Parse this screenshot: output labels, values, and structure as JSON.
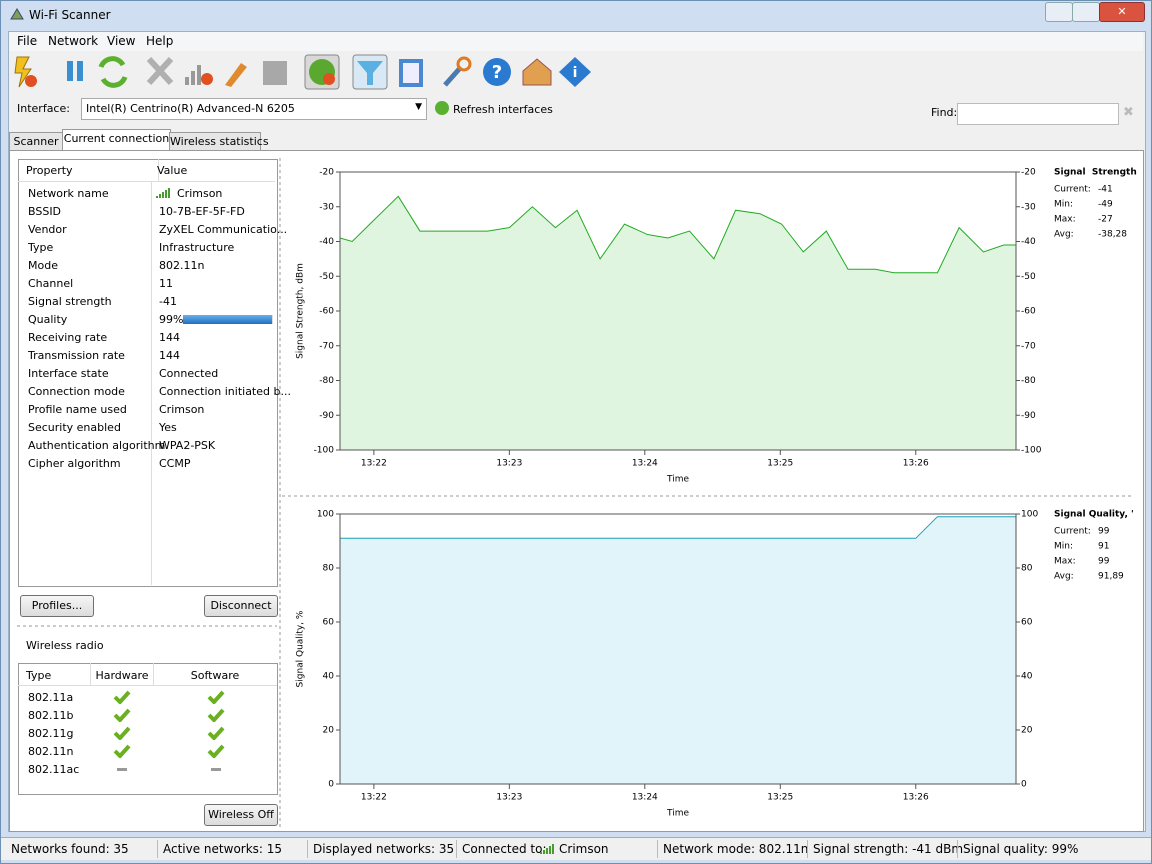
{
  "window": {
    "title": "Wi-Fi Scanner"
  },
  "menu": [
    "File",
    "Network",
    "View",
    "Help"
  ],
  "interface": {
    "label": "Interface:",
    "selected": "Intel(R) Centrino(R) Advanced-N 6205",
    "refresh": "Refresh interfaces",
    "find_label": "Find:"
  },
  "tabs": [
    "Scanner",
    "Current connection",
    "Wireless statistics"
  ],
  "properties": {
    "headers": [
      "Property",
      "Value"
    ],
    "rows": [
      [
        "Network name",
        "Crimson"
      ],
      [
        "BSSID",
        "10-7B-EF-5F-FD"
      ],
      [
        "Vendor",
        "ZyXEL Communicatio..."
      ],
      [
        "Type",
        "Infrastructure"
      ],
      [
        "Mode",
        "802.11n"
      ],
      [
        "Channel",
        "11"
      ],
      [
        "Signal strength",
        "-41"
      ],
      [
        "Quality",
        "99%"
      ],
      [
        "Receiving rate",
        "144"
      ],
      [
        "Transmission rate",
        "144"
      ],
      [
        "Interface state",
        "Connected"
      ],
      [
        "Connection mode",
        "Connection initiated b..."
      ],
      [
        "Profile name used",
        "Crimson"
      ],
      [
        "Security enabled",
        "Yes"
      ],
      [
        "Authentication algorithm",
        "WPA2-PSK"
      ],
      [
        "Cipher algorithm",
        "CCMP"
      ]
    ],
    "quality_percent": 99
  },
  "buttons": {
    "profiles": "Profiles...",
    "disconnect": "Disconnect",
    "wireless_off": "Wireless Off"
  },
  "wireless_radio": {
    "title": "Wireless radio",
    "headers": [
      "Type",
      "Hardware",
      "Software"
    ],
    "rows": [
      {
        "type": "802.11a",
        "hardware": true,
        "software": true
      },
      {
        "type": "802.11b",
        "hardware": true,
        "software": true
      },
      {
        "type": "802.11g",
        "hardware": true,
        "software": true
      },
      {
        "type": "802.11n",
        "hardware": true,
        "software": true
      },
      {
        "type": "802.11ac",
        "hardware": false,
        "software": false
      }
    ]
  },
  "chart_data": [
    {
      "type": "line",
      "y_label": "Signal Strength, dBm",
      "x_label": "Time",
      "color": "#22aa22",
      "fill": "#dff5df",
      "xlim": [
        21.75,
        26.74
      ],
      "xticks": [
        {
          "value": 22,
          "label": "13:22"
        },
        {
          "value": 23,
          "label": "13:23"
        },
        {
          "value": 24,
          "label": "13:24"
        },
        {
          "value": 25,
          "label": "13:25"
        },
        {
          "value": 26,
          "label": "13:26"
        }
      ],
      "ylim": [
        -100,
        -20
      ],
      "yticks": [
        -20,
        -30,
        -40,
        -50,
        -60,
        -70,
        -80,
        -90,
        -100
      ],
      "x": [
        21.75,
        21.84,
        21.97,
        22.18,
        22.34,
        22.84,
        23.0,
        23.17,
        23.34,
        23.5,
        23.67,
        23.85,
        24.02,
        24.17,
        24.33,
        24.51,
        24.67,
        24.85,
        25.01,
        25.17,
        25.34,
        25.5,
        25.7,
        25.84,
        26.16,
        26.32,
        26.5,
        26.65,
        26.74
      ],
      "values": [
        -39,
        -40,
        -35,
        -27,
        -37,
        -37,
        -36,
        -30,
        -36,
        -31,
        -45,
        -35,
        -38,
        -39,
        -37,
        -45,
        -31,
        -32,
        -35,
        -43,
        -37,
        -48,
        -48,
        -49,
        -49,
        -36,
        -43,
        -41,
        -41
      ],
      "legend": {
        "title": "Signal  Strength",
        "items": [
          [
            "Current:",
            "-41"
          ],
          [
            "Min:",
            "-49"
          ],
          [
            "Max:",
            "-27"
          ],
          [
            "Avg:",
            "-38,28"
          ]
        ]
      }
    },
    {
      "type": "line",
      "y_label": "Signal Quality, %",
      "x_label": "Time",
      "color": "#1aa0b8",
      "fill": "#e0f4fa",
      "xlim": [
        21.75,
        26.74
      ],
      "xticks": [
        {
          "value": 22,
          "label": "13:22"
        },
        {
          "value": 23,
          "label": "13:23"
        },
        {
          "value": 24,
          "label": "13:24"
        },
        {
          "value": 25,
          "label": "13:25"
        },
        {
          "value": 26,
          "label": "13:26"
        }
      ],
      "ylim": [
        0,
        100
      ],
      "yticks": [
        0,
        20,
        40,
        60,
        80,
        100
      ],
      "x": [
        21.75,
        26.0,
        26.16,
        26.74
      ],
      "values": [
        91,
        91,
        99,
        99
      ],
      "legend": {
        "title": "Signal Quality, '",
        "items": [
          [
            "Current:",
            "99"
          ],
          [
            "Min:",
            "91"
          ],
          [
            "Max:",
            "99"
          ],
          [
            "Avg:",
            "91,89"
          ]
        ]
      }
    }
  ],
  "status_bar": [
    "Networks found: 35",
    "Active networks: 15",
    "Displayed networks: 35",
    {
      "label": "Connected to:",
      "value": "Crimson"
    },
    "Network mode: 802.11n",
    "Signal strength: -41 dBm",
    "Signal quality: 99%"
  ]
}
